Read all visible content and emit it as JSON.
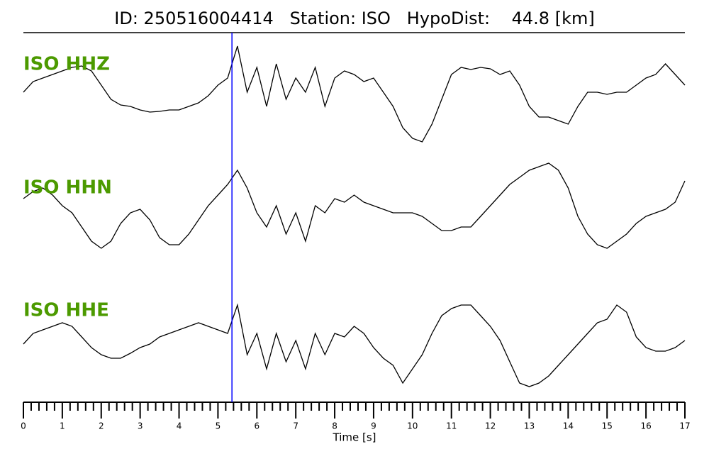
{
  "chart_data": {
    "type": "line",
    "title": "ID: 250516004414   Station: ISO   HypoDist:    44.8 [km]",
    "xlabel": "Time [s]",
    "xlim": [
      0,
      17
    ],
    "xticks": [
      0,
      1,
      2,
      3,
      4,
      5,
      6,
      7,
      8,
      9,
      10,
      11,
      12,
      13,
      14,
      15,
      16,
      17
    ],
    "x": [
      0,
      0.25,
      0.5,
      0.75,
      1,
      1.25,
      1.5,
      1.75,
      2,
      2.25,
      2.5,
      2.75,
      3,
      3.25,
      3.5,
      3.75,
      4,
      4.25,
      4.5,
      4.75,
      5,
      5.25,
      5.5,
      5.75,
      6,
      6.25,
      6.5,
      6.75,
      7,
      7.25,
      7.5,
      7.75,
      8,
      8.25,
      8.5,
      8.75,
      9,
      9.25,
      9.5,
      9.75,
      10,
      10.25,
      10.5,
      10.75,
      11,
      11.25,
      11.5,
      11.75,
      12,
      12.25,
      12.5,
      12.75,
      13,
      13.25,
      13.5,
      13.75,
      14,
      14.25,
      14.5,
      14.75,
      15,
      15.25,
      15.5,
      15.75,
      16,
      16.25,
      16.5,
      16.75,
      17
    ],
    "label_color": "#4c9a00",
    "series": [
      {
        "name": "ISO HHZ",
        "color": "#000000",
        "values": [
          -5,
          10,
          15,
          20,
          25,
          30,
          32,
          25,
          5,
          -15,
          -23,
          -25,
          -30,
          -33,
          -32,
          -30,
          -30,
          -25,
          -20,
          -10,
          5,
          15,
          60,
          -5,
          30,
          -25,
          35,
          -15,
          15,
          -5,
          30,
          -25,
          15,
          25,
          20,
          10,
          15,
          -5,
          -25,
          -55,
          -70,
          -75,
          -50,
          -15,
          20,
          30,
          27,
          30,
          28,
          20,
          25,
          5,
          -25,
          -40,
          -40,
          -45,
          -50,
          -25,
          -5,
          -5,
          -8,
          -5,
          -5,
          5,
          15,
          20,
          35,
          20,
          5
        ]
      },
      {
        "name": "ISO HHN",
        "color": "#000000",
        "values": [
          15,
          25,
          30,
          20,
          5,
          -5,
          -25,
          -45,
          -55,
          -45,
          -20,
          -5,
          0,
          -15,
          -40,
          -50,
          -50,
          -35,
          -15,
          5,
          20,
          35,
          55,
          30,
          -5,
          -25,
          5,
          -35,
          -5,
          -45,
          5,
          -5,
          15,
          10,
          20,
          10,
          5,
          0,
          -5,
          -5,
          -5,
          -10,
          -20,
          -30,
          -30,
          -25,
          -25,
          -10,
          5,
          20,
          35,
          45,
          55,
          60,
          65,
          55,
          30,
          -10,
          -35,
          -50,
          -55,
          -45,
          -35,
          -20,
          -10,
          -5,
          0,
          10,
          40
        ]
      },
      {
        "name": "ISO HHE",
        "color": "#000000",
        "values": [
          -5,
          10,
          15,
          20,
          25,
          20,
          5,
          -10,
          -20,
          -25,
          -25,
          -18,
          -10,
          -5,
          5,
          10,
          15,
          20,
          25,
          20,
          15,
          10,
          50,
          -20,
          10,
          -40,
          10,
          -30,
          0,
          -40,
          10,
          -20,
          10,
          5,
          20,
          10,
          -10,
          -25,
          -35,
          -60,
          -40,
          -20,
          10,
          35,
          45,
          50,
          50,
          35,
          20,
          0,
          -30,
          -60,
          -65,
          -60,
          -50,
          -35,
          -20,
          -5,
          10,
          25,
          30,
          50,
          40,
          5,
          -10,
          -15,
          -15,
          -10,
          0
        ]
      }
    ],
    "pick": {
      "x": 5.36,
      "color": "#0000ff"
    }
  }
}
